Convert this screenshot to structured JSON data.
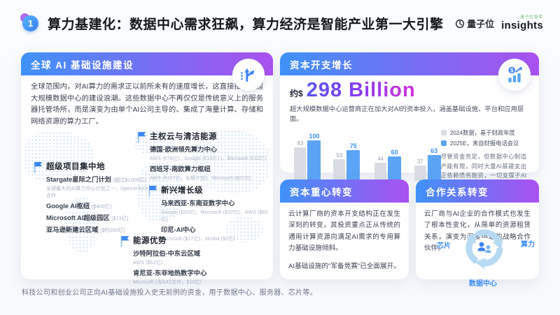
{
  "header": {
    "badge": "1",
    "title": "算力基建化：数据中心需求狂飙，算力经济是智能产业第一大引擎",
    "logos": {
      "qbit": "量子位",
      "insights_sup": "量子位智库",
      "insights": "insights"
    }
  },
  "global_infra": {
    "title": "全球 AI 基础设施建设",
    "intro": "全球范围内，对AI算力的需求正以前所未有的速度增长，这直接推动了超大规模数据中心的建设浪潮。这些数据中心不再仅仅是传统意义上的服务器托管场所，而是演变为由单个AI公司主导的、集成了海量计算、存储和网络资源的算力工厂。",
    "callouts": [
      {
        "title": "主权云与清洁能源",
        "items": [
          {
            "name": "德国-欧洲领先算力中心",
            "detail": "AWS (€78亿)、Google (€10亿+)、Microsoft (€32亿)"
          },
          {
            "name": "西班牙-南欧算力枢纽",
            "detail": "AWS (€157亿，长期计划)、Microsoft ($21亿)"
          }
        ]
      },
      {
        "title": "超级项目集中地",
        "items": [
          {
            "name": "Stargate星际之门计划",
            "note": "(超过$1000亿)",
            "detail": "全球最大的AI算力中心计划之一，OpenAI与Oracle、SoftBank合作"
          },
          {
            "name": "Google AI枢纽",
            "note": "($400亿)"
          },
          {
            "name": "Microsoft AI超级园区",
            "note": "($73亿)"
          },
          {
            "name": "亚马逊新建云区域",
            "note": "($约200亿)"
          }
        ]
      },
      {
        "title": "新兴增长级",
        "items": [
          {
            "name": "马来西亚-东南亚数字中心",
            "detail": "Google ($20亿)、Microsoft ($22亿)、AWS ($60亿)"
          },
          {
            "name": "印尼-AI中心",
            "detail": "Microsoft ($17亿)、Nvidia ($2亿)"
          }
        ]
      },
      {
        "title": "能源优势",
        "items": [
          {
            "name": "沙特阿拉伯-中东云区域",
            "detail": "AWS ($53亿)"
          },
          {
            "name": "肯尼亚-东非地热数字中心",
            "detail": "Microsoft (与G42合作，$10亿)"
          }
        ]
      }
    ]
  },
  "capex": {
    "title": "资本开支增长",
    "approx": "约$",
    "big_number": "298 Billion",
    "desc": "超大规模数据中心运营商正在加大对AI的资本投入，涵盖基础设施、平台和应用层面。",
    "note": "尽管资金充足，但数据中心制造产能有限，同时大量AI基建支出正依赖债务融资，一切支撑于AI能否带来足够收入。"
  },
  "chart_data": {
    "type": "bar",
    "categories": [
      "Amazon",
      "Alphabet",
      "Microsoft",
      "Meta"
    ],
    "series": [
      {
        "name": "2024数据，基于财政年度",
        "color": "#d9dde3",
        "values": [
          83,
          53,
          44,
          37
        ]
      },
      {
        "name": "2025E，来自财报电话会议",
        "color": "#5ba4f5",
        "values": [
          100,
          75,
          60,
          63
        ]
      }
    ],
    "ylim": [
      0,
      100
    ],
    "legend_position": "right",
    "grid": false
  },
  "capital_shift": {
    "title": "资本重心转变",
    "p1": "云计算厂商的资本开支结构正在发生深刻的转变，其投资重点正从传统的通用计算资源向满足AI需求的专用算力基础设施倾斜。",
    "p2": "AI基础设施的\"军备竞赛\"已全面展开。"
  },
  "partnership_shift": {
    "title": "合作关系转变",
    "p1": "云厂商与AI企业的合作模式也发生了根本性变化，从简单的资源租赁关系，演变为深度绑定的战略合作伙伴。",
    "diagram_labels": {
      "chip": "芯片",
      "power": "算力",
      "datacenter": "数据中心"
    }
  },
  "footer": "科技公司和创业公司正向AI基础设施投入史无前例的资金，用于数据中心、服务器、芯片等。",
  "colors": {
    "accent_blue": "#3b82f6",
    "header_gradient_start": "#3f92f8",
    "header_gradient_end": "#ab51f0",
    "big_number_gradient_start": "#5a55ee",
    "big_number_gradient_end": "#d433d8",
    "bar_2024": "#d9dde3",
    "bar_2025e": "#5ba4f5",
    "map_dots": "#cadff5"
  }
}
